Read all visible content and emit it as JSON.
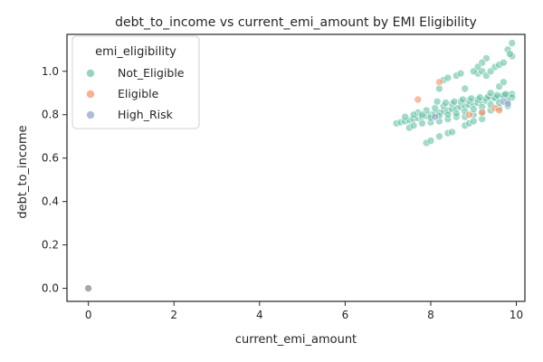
{
  "chart_data": {
    "type": "scatter",
    "title": "debt_to_income vs current_emi_amount by EMI Eligibility",
    "xlabel": "current_emi_amount",
    "ylabel": "debt_to_income",
    "xlim": [
      -0.5,
      10.2
    ],
    "ylim": [
      -0.06,
      1.17
    ],
    "xticks": [
      0,
      2,
      4,
      6,
      8,
      10
    ],
    "yticks": [
      0.0,
      0.2,
      0.4,
      0.6,
      0.8,
      1.0
    ],
    "xtick_labels": [
      "0",
      "2",
      "4",
      "6",
      "8",
      "10"
    ],
    "ytick_labels": [
      "0.0",
      "0.2",
      "0.4",
      "0.6",
      "0.8",
      "1.0"
    ],
    "grid": false,
    "legend": {
      "title": "emi_eligibility",
      "placement": "top-left"
    },
    "series": [
      {
        "name": "Not_Eligible",
        "color": "#66c2a5",
        "points": [
          [
            0,
            0.0
          ],
          [
            7.2,
            0.76
          ],
          [
            7.3,
            0.765
          ],
          [
            7.4,
            0.77
          ],
          [
            7.5,
            0.775
          ],
          [
            7.6,
            0.78
          ],
          [
            7.7,
            0.785
          ],
          [
            7.8,
            0.79
          ],
          [
            7.9,
            0.795
          ],
          [
            8.0,
            0.8
          ],
          [
            8.1,
            0.805
          ],
          [
            8.2,
            0.81
          ],
          [
            8.3,
            0.815
          ],
          [
            8.4,
            0.82
          ],
          [
            8.5,
            0.825
          ],
          [
            8.6,
            0.83
          ],
          [
            8.7,
            0.835
          ],
          [
            8.8,
            0.84
          ],
          [
            8.9,
            0.845
          ],
          [
            9.0,
            0.85
          ],
          [
            9.1,
            0.855
          ],
          [
            9.2,
            0.86
          ],
          [
            9.3,
            0.865
          ],
          [
            9.4,
            0.87
          ],
          [
            9.5,
            0.875
          ],
          [
            9.6,
            0.88
          ],
          [
            9.7,
            0.885
          ],
          [
            9.8,
            0.89
          ],
          [
            9.9,
            0.895
          ],
          [
            7.5,
            0.74
          ],
          [
            7.6,
            0.75
          ],
          [
            7.8,
            0.76
          ],
          [
            8.0,
            0.765
          ],
          [
            8.2,
            0.77
          ],
          [
            8.4,
            0.78
          ],
          [
            8.6,
            0.79
          ],
          [
            8.8,
            0.79
          ],
          [
            9.0,
            0.8
          ],
          [
            9.2,
            0.81
          ],
          [
            9.4,
            0.82
          ],
          [
            9.6,
            0.83
          ],
          [
            9.8,
            0.84
          ],
          [
            7.7,
            0.81
          ],
          [
            7.9,
            0.82
          ],
          [
            8.1,
            0.83
          ],
          [
            8.3,
            0.84
          ],
          [
            8.5,
            0.85
          ],
          [
            8.7,
            0.86
          ],
          [
            8.9,
            0.865
          ],
          [
            9.1,
            0.87
          ],
          [
            9.3,
            0.875
          ],
          [
            9.5,
            0.88
          ],
          [
            9.7,
            0.89
          ],
          [
            9.9,
            0.88
          ],
          [
            7.4,
            0.79
          ],
          [
            7.6,
            0.8
          ],
          [
            7.8,
            0.8
          ],
          [
            8.0,
            0.785
          ],
          [
            8.2,
            0.795
          ],
          [
            8.4,
            0.8
          ],
          [
            8.6,
            0.805
          ],
          [
            8.8,
            0.815
          ],
          [
            9.0,
            0.825
          ],
          [
            9.2,
            0.835
          ],
          [
            9.4,
            0.845
          ],
          [
            9.6,
            0.855
          ],
          [
            9.8,
            0.865
          ],
          [
            8.15,
            0.86
          ],
          [
            8.35,
            0.855
          ],
          [
            8.55,
            0.86
          ],
          [
            8.75,
            0.87
          ],
          [
            8.95,
            0.875
          ],
          [
            9.15,
            0.88
          ],
          [
            9.35,
            0.885
          ],
          [
            9.55,
            0.89
          ],
          [
            9.75,
            0.895
          ],
          [
            7.9,
            0.67
          ],
          [
            8.0,
            0.68
          ],
          [
            8.2,
            0.7
          ],
          [
            8.4,
            0.715
          ],
          [
            8.5,
            0.72
          ],
          [
            8.8,
            0.75
          ],
          [
            8.9,
            0.76
          ],
          [
            9.0,
            0.77
          ],
          [
            9.2,
            0.78
          ],
          [
            8.3,
            0.96
          ],
          [
            8.4,
            0.97
          ],
          [
            8.6,
            0.98
          ],
          [
            8.7,
            0.99
          ],
          [
            9.1,
            0.99
          ],
          [
            9.2,
            1.0
          ],
          [
            9.3,
            0.98
          ],
          [
            9.4,
            1.0
          ],
          [
            9.5,
            1.02
          ],
          [
            9.6,
            1.03
          ],
          [
            9.7,
            1.04
          ],
          [
            9.8,
            1.1
          ],
          [
            9.9,
            1.13
          ],
          [
            9.9,
            1.07
          ],
          [
            9.85,
            1.08
          ],
          [
            9.3,
            1.06
          ],
          [
            9.2,
            1.04
          ],
          [
            9.1,
            1.02
          ],
          [
            9.0,
            1.0
          ],
          [
            8.8,
            0.92
          ],
          [
            8.2,
            0.92
          ],
          [
            9.4,
            0.9
          ],
          [
            9.6,
            0.93
          ],
          [
            9.7,
            0.95
          ]
        ]
      },
      {
        "name": "Eligible",
        "color": "#fc8d62",
        "points": [
          [
            0,
            0.0
          ],
          [
            7.7,
            0.87
          ],
          [
            8.2,
            0.95
          ],
          [
            8.9,
            0.8
          ],
          [
            9.2,
            0.81
          ],
          [
            9.5,
            0.83
          ],
          [
            9.6,
            0.82
          ]
        ]
      },
      {
        "name": "High_Risk",
        "color": "#8da0cb",
        "points": [
          [
            0,
            0.0
          ],
          [
            8.1,
            0.79
          ],
          [
            9.7,
            0.86
          ],
          [
            9.8,
            0.85
          ]
        ]
      }
    ]
  }
}
